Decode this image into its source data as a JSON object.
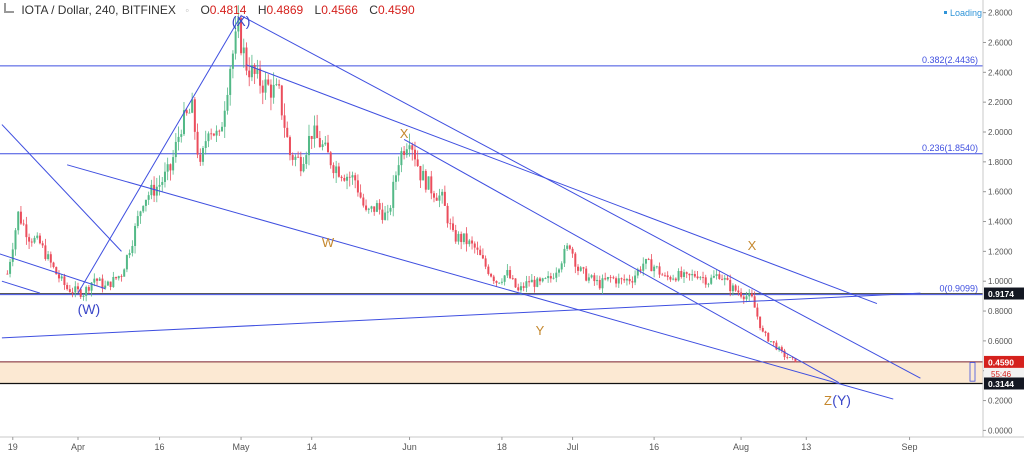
{
  "header": {
    "title": "IOTA / Dollar, 240, BITFINEX",
    "fav_icon": "chevron-down-icon",
    "ohlc": [
      {
        "k": "O",
        "v": "0.4814"
      },
      {
        "k": "H",
        "v": "0.4869"
      },
      {
        "k": "L",
        "v": "0.4566"
      },
      {
        "k": "C",
        "v": "0.4590"
      }
    ],
    "loading": "Loading"
  },
  "colors": {
    "up": "#53b987",
    "down": "#eb4d5c",
    "line": "#3f4fe0",
    "zone_fill": "#fce9d3",
    "wave_orange": "#c5882e",
    "wave_blue": "#3a46c8",
    "axis_text": "#555555",
    "price_label": "#d5211d"
  },
  "chart_data": {
    "type": "candlestick",
    "title": "IOTA / Dollar, 240, BITFINEX",
    "xlabel": "",
    "ylabel": "",
    "ylim": [
      -0.05,
      2.85
    ],
    "x_ticks": [
      {
        "label": "19",
        "day": -12
      },
      {
        "label": "Apr",
        "day": 0
      },
      {
        "label": "16",
        "day": 15
      },
      {
        "label": "May",
        "day": 30
      },
      {
        "label": "14",
        "day": 43
      },
      {
        "label": "Jun",
        "day": 61
      },
      {
        "label": "18",
        "day": 78
      },
      {
        "label": "Jul",
        "day": 91
      },
      {
        "label": "16",
        "day": 106
      },
      {
        "label": "Aug",
        "day": 122
      },
      {
        "label": "13",
        "day": 134
      },
      {
        "label": "Sep",
        "day": 153
      }
    ],
    "y_ticks": [
      "2.8000",
      "2.6000",
      "2.4000",
      "2.2000",
      "2.0000",
      "1.8000",
      "1.6000",
      "1.4000",
      "1.2000",
      "1.0000",
      "0.8000",
      "0.6000",
      "0.4000",
      "0.2000",
      "0.0000"
    ],
    "price_path": [
      [
        -13,
        1.05
      ],
      [
        -11,
        1.45
      ],
      [
        -9,
        1.3
      ],
      [
        -7,
        1.25
      ],
      [
        -4,
        1.05
      ],
      [
        -2,
        0.95
      ],
      [
        1,
        0.92
      ],
      [
        3,
        1.02
      ],
      [
        5,
        0.96
      ],
      [
        8,
        1.05
      ],
      [
        10,
        1.28
      ],
      [
        12,
        1.55
      ],
      [
        15,
        1.65
      ],
      [
        17,
        1.75
      ],
      [
        19,
        2.05
      ],
      [
        21,
        2.15
      ],
      [
        22.5,
        1.75
      ],
      [
        24,
        2.05
      ],
      [
        26,
        1.95
      ],
      [
        28,
        2.45
      ],
      [
        29.5,
        2.68
      ],
      [
        31,
        2.45
      ],
      [
        33,
        2.35
      ],
      [
        35,
        2.3
      ],
      [
        37,
        2.25
      ],
      [
        39,
        1.85
      ],
      [
        41,
        1.8
      ],
      [
        43,
        2.0
      ],
      [
        45,
        1.9
      ],
      [
        47,
        1.78
      ],
      [
        49,
        1.72
      ],
      [
        51,
        1.68
      ],
      [
        53,
        1.45
      ],
      [
        55,
        1.5
      ],
      [
        57,
        1.42
      ],
      [
        59,
        1.82
      ],
      [
        61,
        1.98
      ],
      [
        63,
        1.72
      ],
      [
        65,
        1.62
      ],
      [
        67,
        1.55
      ],
      [
        69,
        1.3
      ],
      [
        71,
        1.28
      ],
      [
        73,
        1.22
      ],
      [
        75,
        1.1
      ],
      [
        77,
        1.0
      ],
      [
        79,
        1.05
      ],
      [
        81,
        0.93
      ],
      [
        83,
        1.0
      ],
      [
        85,
        0.98
      ],
      [
        87,
        1.02
      ],
      [
        89,
        1.15
      ],
      [
        90.5,
        1.25
      ],
      [
        92,
        1.08
      ],
      [
        94,
        1.02
      ],
      [
        96,
        0.98
      ],
      [
        98,
        1.02
      ],
      [
        100,
        1.0
      ],
      [
        102,
        1.02
      ],
      [
        104,
        1.12
      ],
      [
        106,
        1.1
      ],
      [
        108,
        1.02
      ],
      [
        110,
        1.04
      ],
      [
        112,
        1.02
      ],
      [
        114,
        1.05
      ],
      [
        116,
        1.0
      ],
      [
        118,
        1.05
      ],
      [
        120,
        0.96
      ],
      [
        122,
        0.92
      ],
      [
        124,
        0.88
      ],
      [
        126,
        0.65
      ],
      [
        128,
        0.58
      ],
      [
        130,
        0.5
      ],
      [
        132,
        0.46
      ]
    ],
    "last_price": 0.459,
    "last_label": "0.4590",
    "countdown": "55:46",
    "crosshair_price": "0.9174",
    "support_price": "0.3144",
    "fib_levels": [
      {
        "label": "0.382(2.4436)",
        "price": 2.4436
      },
      {
        "label": "0.236(1.8540)",
        "price": 1.854
      },
      {
        "label": "0(0.9099)",
        "price": 0.9099
      }
    ],
    "zone": {
      "from": 0.3144,
      "to": 0.459
    },
    "trendlines": [
      [
        [
          -20,
          1.25
        ],
        [
          5,
          0.95
        ]
      ],
      [
        [
          -14,
          1.0
        ],
        [
          -7,
          0.92
        ]
      ],
      [
        [
          -14,
          2.05
        ],
        [
          8,
          1.2
        ]
      ],
      [
        [
          0,
          0.92
        ],
        [
          30,
          2.78
        ]
      ],
      [
        [
          30,
          2.78
        ],
        [
          155,
          0.35
        ]
      ],
      [
        [
          31,
          2.45
        ],
        [
          147,
          0.85
        ]
      ],
      [
        [
          -2,
          1.78
        ],
        [
          150,
          0.21
        ]
      ],
      [
        [
          -14,
          0.62
        ],
        [
          155,
          0.92
        ]
      ],
      [
        [
          60,
          1.95
        ],
        [
          140,
          0.32
        ]
      ]
    ],
    "wave_labels": [
      {
        "text": "(X)",
        "day": 30,
        "price": 2.71,
        "color": "blue"
      },
      {
        "text": "(W)",
        "day": 2,
        "price": 0.78,
        "color": "blue"
      },
      {
        "text": "X",
        "day": 60,
        "price": 1.96,
        "color": "orange"
      },
      {
        "text": "W",
        "day": 46,
        "price": 1.23,
        "color": "orange"
      },
      {
        "text": "Y",
        "day": 85,
        "price": 0.64,
        "color": "orange"
      },
      {
        "text": "X",
        "day": 124,
        "price": 1.21,
        "color": "orange"
      },
      {
        "text": "Z",
        "day": 138,
        "price": 0.17,
        "color": "orange"
      },
      {
        "text": "(Y)",
        "day": 140.5,
        "price": 0.17,
        "color": "blue"
      }
    ]
  }
}
